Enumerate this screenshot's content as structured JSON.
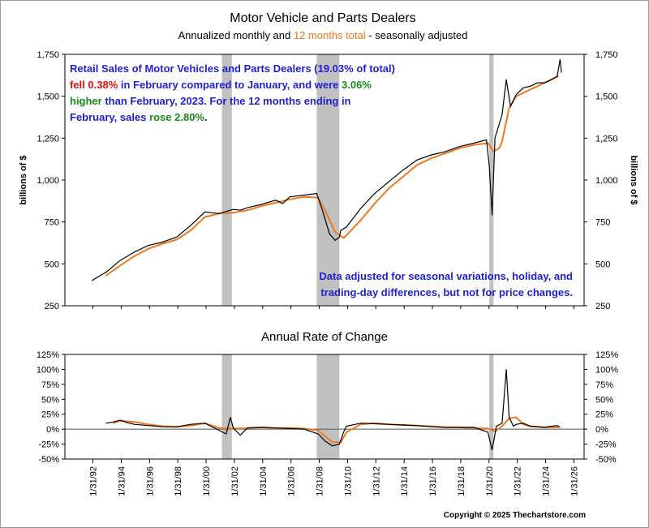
{
  "header": {
    "title": "Motor Vehicle and Parts Dealers",
    "subtitle_a": "Annualized monthly and ",
    "subtitle_b": "12 months total",
    "subtitle_c": " - seasonally adjusted"
  },
  "annotation": {
    "line1": "Retail Sales of Motor Vehicles and Parts Dealers (19.03% of total)",
    "line2_a": "fell 0.38%",
    "line2_b": " in February compared to January, and were ",
    "line2_c": "3.06%",
    "line3_a": "higher",
    "line3_b": " than February, 2023.  For the 12 months ending in",
    "line4_a": "February, sales ",
    "line4_b": "rose 2.80%",
    "line4_c": ".",
    "note1": "Data adjusted for seasonal variations, holiday, and",
    "note2": "trading-day differences, but not for price changes."
  },
  "colors": {
    "monthly": "#000000",
    "twelve_month": "#f07820",
    "recession": "#c0c0c0",
    "blue_text": "#1f1fd0",
    "red_text": "#e01010",
    "green_text": "#1a8a1a"
  },
  "copyright": "Copyright © 2025 Thechartstore.com",
  "chart_data": [
    {
      "type": "line",
      "title": "Motor Vehicle and Parts Dealers",
      "ylabel": "billions of $",
      "ylim": [
        250,
        1750
      ],
      "y_ticks": [
        "250",
        "500",
        "750",
        "1,000",
        "1,250",
        "1,500",
        "1,750"
      ],
      "recessions": [
        [
          2001.2,
          2001.9
        ],
        [
          2007.9,
          2009.5
        ],
        [
          2020.1,
          2020.4
        ]
      ],
      "series": [
        {
          "name": "Annualized monthly",
          "points": [
            [
              1992.0,
              400
            ],
            [
              1993.0,
              450
            ],
            [
              1994.0,
              520
            ],
            [
              1995.0,
              570
            ],
            [
              1996.0,
              610
            ],
            [
              1997.0,
              630
            ],
            [
              1998.0,
              660
            ],
            [
              1999.0,
              730
            ],
            [
              2000.0,
              810
            ],
            [
              2001.0,
              800
            ],
            [
              2001.8,
              820
            ],
            [
              2002.0,
              825
            ],
            [
              2002.5,
              820
            ],
            [
              2003.0,
              835
            ],
            [
              2004.0,
              855
            ],
            [
              2005.0,
              880
            ],
            [
              2005.5,
              860
            ],
            [
              2006.0,
              900
            ],
            [
              2007.0,
              910
            ],
            [
              2007.9,
              920
            ],
            [
              2008.3,
              820
            ],
            [
              2008.8,
              680
            ],
            [
              2009.2,
              640
            ],
            [
              2009.5,
              660
            ],
            [
              2009.6,
              700
            ],
            [
              2010.0,
              720
            ],
            [
              2011.0,
              830
            ],
            [
              2012.0,
              920
            ],
            [
              2013.0,
              990
            ],
            [
              2014.0,
              1060
            ],
            [
              2015.0,
              1120
            ],
            [
              2016.0,
              1150
            ],
            [
              2017.0,
              1170
            ],
            [
              2018.0,
              1200
            ],
            [
              2019.0,
              1220
            ],
            [
              2019.9,
              1240
            ],
            [
              2020.1,
              1080
            ],
            [
              2020.3,
              790
            ],
            [
              2020.5,
              1250
            ],
            [
              2021.0,
              1390
            ],
            [
              2021.3,
              1600
            ],
            [
              2021.6,
              1440
            ],
            [
              2022.0,
              1510
            ],
            [
              2022.5,
              1550
            ],
            [
              2023.0,
              1560
            ],
            [
              2023.5,
              1580
            ],
            [
              2024.0,
              1580
            ],
            [
              2024.5,
              1600
            ],
            [
              2024.9,
              1620
            ],
            [
              2025.1,
              1720
            ],
            [
              2025.2,
              1640
            ]
          ]
        },
        {
          "name": "12 months total",
          "points": [
            [
              1993.0,
              430
            ],
            [
              1994.0,
              490
            ],
            [
              1995.0,
              545
            ],
            [
              1996.0,
              590
            ],
            [
              1997.0,
              620
            ],
            [
              1998.0,
              645
            ],
            [
              1999.0,
              700
            ],
            [
              2000.0,
              780
            ],
            [
              2001.0,
              800
            ],
            [
              2002.0,
              805
            ],
            [
              2003.0,
              820
            ],
            [
              2004.0,
              845
            ],
            [
              2005.0,
              865
            ],
            [
              2006.0,
              885
            ],
            [
              2007.0,
              900
            ],
            [
              2008.0,
              895
            ],
            [
              2008.6,
              800
            ],
            [
              2009.2,
              690
            ],
            [
              2009.8,
              655
            ],
            [
              2010.0,
              670
            ],
            [
              2011.0,
              760
            ],
            [
              2012.0,
              860
            ],
            [
              2013.0,
              950
            ],
            [
              2014.0,
              1020
            ],
            [
              2015.0,
              1090
            ],
            [
              2016.0,
              1130
            ],
            [
              2017.0,
              1160
            ],
            [
              2018.0,
              1190
            ],
            [
              2019.0,
              1210
            ],
            [
              2020.0,
              1220
            ],
            [
              2020.4,
              1170
            ],
            [
              2020.8,
              1190
            ],
            [
              2021.0,
              1230
            ],
            [
              2021.5,
              1430
            ],
            [
              2022.0,
              1500
            ],
            [
              2023.0,
              1540
            ],
            [
              2024.0,
              1580
            ],
            [
              2025.0,
              1620
            ]
          ]
        }
      ]
    },
    {
      "type": "line",
      "title": "Annual Rate of Change",
      "ylim": [
        -50,
        125
      ],
      "y_ticks": [
        "-50%",
        "-25%",
        "0%",
        "25%",
        "50%",
        "75%",
        "100%",
        "125%"
      ],
      "x_ticks": [
        "1/31/92",
        "1/31/94",
        "1/31/96",
        "1/31/98",
        "1/31/00",
        "1/31/02",
        "1/31/04",
        "1/31/06",
        "1/31/08",
        "1/31/10",
        "1/31/12",
        "1/31/14",
        "1/31/16",
        "1/31/18",
        "1/31/20",
        "1/31/22",
        "1/31/24",
        "1/31/26"
      ],
      "recessions": [
        [
          2001.2,
          2001.9
        ],
        [
          2007.9,
          2009.5
        ],
        [
          2020.1,
          2020.4
        ]
      ],
      "series": [
        {
          "name": "Annualized monthly",
          "points": [
            [
              1993.0,
              10
            ],
            [
              1993.5,
              12
            ],
            [
              1994.0,
              15
            ],
            [
              1994.5,
              11
            ],
            [
              1995.0,
              8
            ],
            [
              1996.0,
              6
            ],
            [
              1997.0,
              4
            ],
            [
              1998.0,
              4
            ],
            [
              1999.0,
              8
            ],
            [
              2000.0,
              10
            ],
            [
              2001.0,
              -2
            ],
            [
              2001.5,
              -8
            ],
            [
              2001.8,
              20
            ],
            [
              2002.0,
              2
            ],
            [
              2002.5,
              -10
            ],
            [
              2003.0,
              2
            ],
            [
              2004.0,
              3
            ],
            [
              2005.0,
              2
            ],
            [
              2006.0,
              1
            ],
            [
              2007.0,
              0
            ],
            [
              2008.0,
              -8
            ],
            [
              2008.5,
              -20
            ],
            [
              2009.0,
              -28
            ],
            [
              2009.5,
              -25
            ],
            [
              2009.8,
              -5
            ],
            [
              2010.0,
              5
            ],
            [
              2011.0,
              10
            ],
            [
              2012.0,
              9
            ],
            [
              2013.0,
              8
            ],
            [
              2014.0,
              7
            ],
            [
              2015.0,
              6
            ],
            [
              2016.0,
              4
            ],
            [
              2017.0,
              3
            ],
            [
              2018.0,
              3
            ],
            [
              2019.0,
              3
            ],
            [
              2020.0,
              -5
            ],
            [
              2020.3,
              -35
            ],
            [
              2020.6,
              5
            ],
            [
              2021.0,
              10
            ],
            [
              2021.3,
              100
            ],
            [
              2021.5,
              20
            ],
            [
              2021.8,
              5
            ],
            [
              2022.0,
              8
            ],
            [
              2022.5,
              10
            ],
            [
              2023.0,
              5
            ],
            [
              2024.0,
              3
            ],
            [
              2024.5,
              5
            ],
            [
              2024.9,
              6
            ],
            [
              2025.1,
              3
            ]
          ]
        },
        {
          "name": "12 months total",
          "points": [
            [
              1993.5,
              10
            ],
            [
              1994.0,
              14
            ],
            [
              1995.0,
              12
            ],
            [
              1996.0,
              8
            ],
            [
              1997.0,
              5
            ],
            [
              1998.0,
              4
            ],
            [
              1999.0,
              6
            ],
            [
              2000.0,
              10
            ],
            [
              2001.0,
              2
            ],
            [
              2002.0,
              1
            ],
            [
              2003.0,
              2
            ],
            [
              2004.0,
              3
            ],
            [
              2005.0,
              2
            ],
            [
              2006.0,
              2
            ],
            [
              2007.0,
              1
            ],
            [
              2008.0,
              -2
            ],
            [
              2008.5,
              -12
            ],
            [
              2009.0,
              -22
            ],
            [
              2009.6,
              -22
            ],
            [
              2010.0,
              -5
            ],
            [
              2011.0,
              8
            ],
            [
              2012.0,
              10
            ],
            [
              2013.0,
              8
            ],
            [
              2014.0,
              7
            ],
            [
              2015.0,
              6
            ],
            [
              2016.0,
              5
            ],
            [
              2017.0,
              3
            ],
            [
              2018.0,
              3
            ],
            [
              2019.0,
              2
            ],
            [
              2020.0,
              1
            ],
            [
              2020.5,
              -4
            ],
            [
              2021.0,
              5
            ],
            [
              2021.5,
              18
            ],
            [
              2022.0,
              20
            ],
            [
              2022.5,
              8
            ],
            [
              2023.0,
              5
            ],
            [
              2024.0,
              3
            ],
            [
              2025.0,
              3
            ]
          ]
        }
      ]
    }
  ]
}
